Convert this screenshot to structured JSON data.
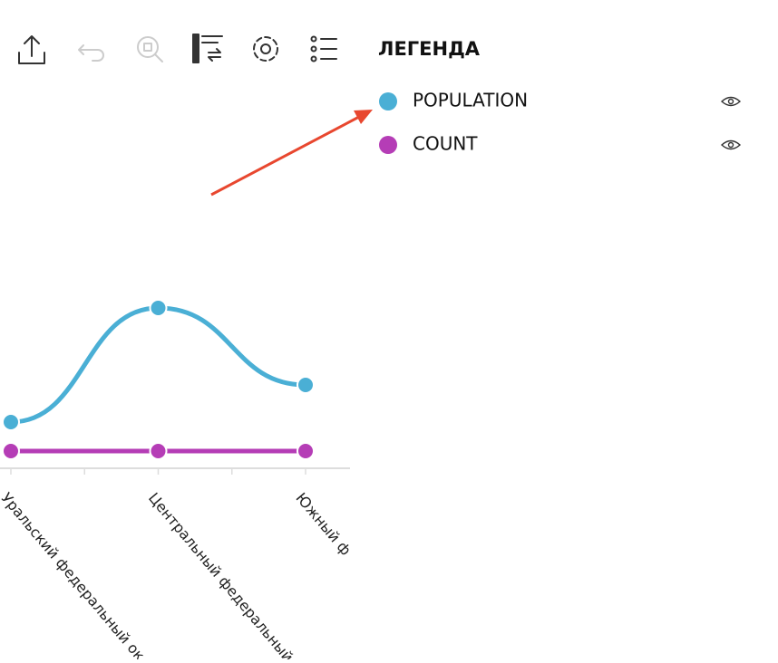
{
  "legend_title": "ЛЕГЕНДА",
  "chart_data": {
    "type": "line",
    "categories": [
      "Уральский федеральный ок",
      "Центральный федеральный",
      "Южный ф"
    ],
    "series": [
      {
        "name": "POPULATION",
        "color": "#4aafd5",
        "values": [
          51,
          177,
          92
        ]
      },
      {
        "name": "COUNT",
        "color": "#b53db6",
        "values": [
          19,
          19,
          19
        ]
      }
    ],
    "ylim": [
      0,
      200
    ]
  }
}
